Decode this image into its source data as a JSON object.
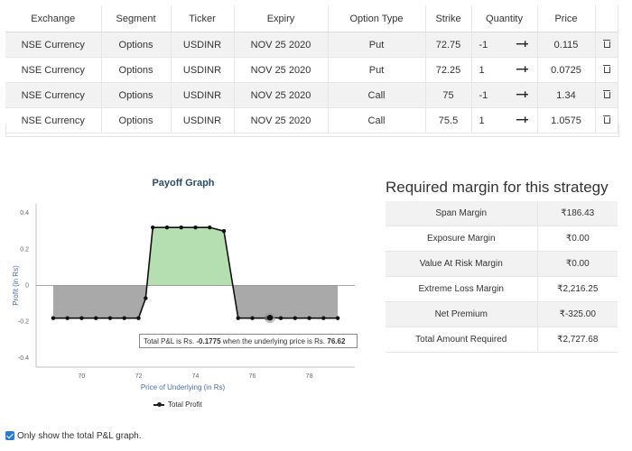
{
  "orders": {
    "headers": [
      "Exchange",
      "Segment",
      "Ticker",
      "Expiry",
      "Option Type",
      "Strike",
      "Quantity",
      "Price",
      ""
    ],
    "rows": [
      {
        "exchange": "NSE Currency",
        "segment": "Options",
        "ticker": "USDINR",
        "expiry": "NOV 25 2020",
        "option_type": "Put",
        "strike": "72.75",
        "quantity": "-1",
        "price": "0.115"
      },
      {
        "exchange": "NSE Currency",
        "segment": "Options",
        "ticker": "USDINR",
        "expiry": "NOV 25 2020",
        "option_type": "Put",
        "strike": "72.25",
        "quantity": "1",
        "price": "0.0725"
      },
      {
        "exchange": "NSE Currency",
        "segment": "Options",
        "ticker": "USDINR",
        "expiry": "NOV 25 2020",
        "option_type": "Call",
        "strike": "75",
        "quantity": "-1",
        "price": "1.34"
      },
      {
        "exchange": "NSE Currency",
        "segment": "Options",
        "ticker": "USDINR",
        "expiry": "NOV 25 2020",
        "option_type": "Call",
        "strike": "75.5",
        "quantity": "1",
        "price": "1.0575"
      }
    ],
    "qty_control_label": "−+"
  },
  "chart_data": {
    "type": "line",
    "title": "Payoff Graph",
    "xlabel": "Price of Underlying (in Rs)",
    "ylabel": "Profit (in Rs)",
    "x_ticks": [
      "70",
      "72",
      "74",
      "76",
      "78"
    ],
    "y_ticks": [
      "0.4",
      "0.2",
      "0",
      "-0.2",
      "-0.4"
    ],
    "xlim": [
      68.4,
      79.6
    ],
    "ylim": [
      -0.45,
      0.45
    ],
    "series": [
      {
        "name": "Total Profit",
        "x": [
          69.0,
          69.5,
          70.0,
          70.5,
          71.0,
          71.5,
          72.0,
          72.25,
          72.5,
          73.0,
          73.5,
          74.0,
          74.5,
          75.0,
          75.5,
          76.0,
          76.5,
          76.62,
          77.0,
          77.5,
          78.0,
          78.5,
          79.0
        ],
        "y": [
          -0.18,
          -0.18,
          -0.18,
          -0.18,
          -0.18,
          -0.18,
          -0.18,
          -0.07,
          0.32,
          0.32,
          0.32,
          0.32,
          0.32,
          0.3,
          -0.18,
          -0.18,
          -0.18,
          -0.1775,
          -0.18,
          -0.18,
          -0.18,
          -0.18,
          -0.18
        ]
      }
    ],
    "legend": "Total Profit",
    "tooltip_text": "Total P&L is Rs. -0.1775 when the underlying price is Rs. 76.62",
    "colors": {
      "profit_fill": "#b5deb1",
      "loss_fill": "#a9a9a9",
      "line": "#111111",
      "axis": "#c0c0c0"
    }
  },
  "tooltip": {
    "prefix": "Total P&L is Rs. ",
    "pnl": "-0.1775",
    "middle": " when the underlying price is Rs. ",
    "price": "76.62"
  },
  "legend_label": "Total Profit",
  "margin": {
    "title": "Required margin for this strategy",
    "rows": [
      {
        "label": "Span Margin",
        "value": "₹186.43"
      },
      {
        "label": "Exposure Margin",
        "value": "₹0.00"
      },
      {
        "label": "Value At Risk Margin",
        "value": "₹0.00"
      },
      {
        "label": "Extreme Loss Margin",
        "value": "₹2,216.25"
      },
      {
        "label": "Net Premium",
        "value": "₹-325.00"
      },
      {
        "label": "Total Amount Required",
        "value": "₹2,727.68"
      }
    ]
  },
  "checkbox": {
    "label": "Only show the total P&L graph.",
    "checked": true
  }
}
